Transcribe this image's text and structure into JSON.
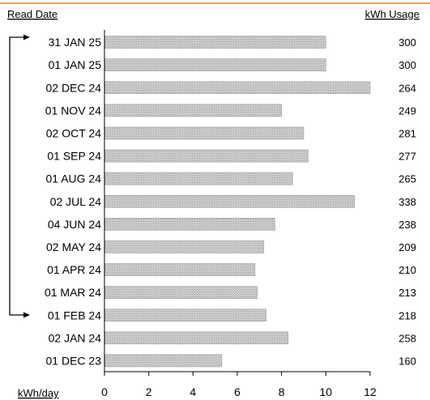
{
  "header": {
    "left_label": "Read Date",
    "right_label": "kWh  Usage"
  },
  "colors": {
    "accent_line": "#f5a623",
    "bar_fill": "#c4c4c4",
    "bar_stroke": "#9a9a9a",
    "axis": "#000000"
  },
  "chart_data": {
    "type": "bar",
    "orientation": "horizontal",
    "categories": [
      "31 JAN 25",
      "01 JAN 25",
      "02 DEC 24",
      "01 NOV 24",
      "02 OCT 24",
      "01 SEP 24",
      "01 AUG 24",
      "02 JUL 24",
      "04 JUN 24",
      "02 MAY 24",
      "01 APR 24",
      "01 MAR 24",
      "01 FEB 24",
      "02 JAN 24",
      "01 DEC 23"
    ],
    "series": [
      {
        "values": [
          10.0,
          10.0,
          12.0,
          8.0,
          9.0,
          9.2,
          8.5,
          11.3,
          7.7,
          7.2,
          6.8,
          6.9,
          7.3,
          8.3,
          5.3
        ]
      }
    ],
    "data_labels": [
      "300",
      "300",
      "264",
      "249",
      "281",
      "277",
      "265",
      "338",
      "238",
      "209",
      "210",
      "213",
      "218",
      "258",
      "160"
    ],
    "xlabel": "kWh/day",
    "xlim": [
      0,
      12
    ],
    "xticks": [
      "0",
      "2",
      "4",
      "6",
      "8",
      "10",
      "12"
    ],
    "grid": false,
    "legend": "none",
    "annotation": "bracket arrows pointing to 31 JAN 25 and 01 FEB 24"
  }
}
